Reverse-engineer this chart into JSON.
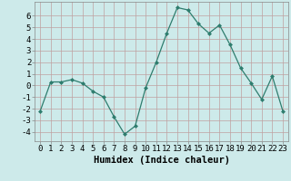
{
  "x": [
    0,
    1,
    2,
    3,
    4,
    5,
    6,
    7,
    8,
    9,
    10,
    11,
    12,
    13,
    14,
    15,
    16,
    17,
    18,
    19,
    20,
    21,
    22,
    23
  ],
  "y": [
    -2.2,
    0.3,
    0.3,
    0.5,
    0.2,
    -0.5,
    -1.0,
    -2.7,
    -4.2,
    -3.5,
    -0.2,
    2.0,
    4.5,
    6.7,
    6.5,
    5.3,
    4.5,
    5.2,
    3.5,
    1.5,
    0.2,
    -1.2,
    0.8,
    -2.2
  ],
  "line_color": "#2e7d6e",
  "marker": "D",
  "marker_size": 2,
  "bg_color": "#cdeaea",
  "grid_color": "#c0a0a0",
  "xlabel": "Humidex (Indice chaleur)",
  "xlabel_fontsize": 7.5,
  "tick_fontsize": 6.5,
  "ylim": [
    -4.8,
    7.2
  ],
  "xlim": [
    -0.5,
    23.5
  ],
  "yticks": [
    -4,
    -3,
    -2,
    -1,
    0,
    1,
    2,
    3,
    4,
    5,
    6
  ],
  "xticks": [
    0,
    1,
    2,
    3,
    4,
    5,
    6,
    7,
    8,
    9,
    10,
    11,
    12,
    13,
    14,
    15,
    16,
    17,
    18,
    19,
    20,
    21,
    22,
    23
  ]
}
